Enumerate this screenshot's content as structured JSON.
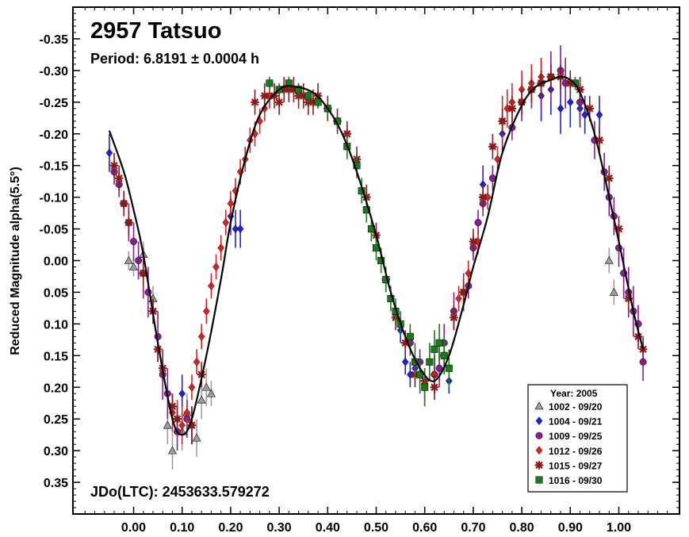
{
  "chart_data": {
    "type": "scatter",
    "title": "2957 Tatsuo",
    "subtitle": "Period: 6.8191 ± 0.0004 h",
    "epoch_label": "JDo(LTC): 2453633.579272",
    "xlabel": "",
    "ylabel": "Reduced Magnitude alpha(5.5°)",
    "xlim": [
      -0.125,
      1.125
    ],
    "ylim": [
      0.4,
      -0.4
    ],
    "y_inverted": true,
    "x_ticks": [
      0.0,
      0.1,
      0.2,
      0.3,
      0.4,
      0.5,
      0.6,
      0.7,
      0.8,
      0.9,
      1.0
    ],
    "x_tick_labels": [
      "0.00",
      "0.10",
      "0.20",
      "0.30",
      "0.40",
      "0.50",
      "0.60",
      "0.70",
      "0.80",
      "0.90",
      "1.00"
    ],
    "y_ticks": [
      -0.35,
      -0.3,
      -0.25,
      -0.2,
      -0.15,
      -0.1,
      -0.05,
      0.0,
      0.05,
      0.1,
      0.15,
      0.2,
      0.25,
      0.3,
      0.35
    ],
    "y_tick_labels": [
      "-0.35",
      "-0.30",
      "-0.25",
      "-0.20",
      "-0.15",
      "-0.10",
      "-0.05",
      "0.00",
      "0.05",
      "0.10",
      "0.15",
      "0.20",
      "0.25",
      "0.30",
      "0.35"
    ],
    "grid": false,
    "legend": {
      "title": "Year: 2005",
      "position": "bottom-right"
    },
    "fit_curve": {
      "x": [
        -0.05,
        -0.02,
        0.0,
        0.02,
        0.05,
        0.08,
        0.1,
        0.12,
        0.15,
        0.18,
        0.2,
        0.23,
        0.26,
        0.3,
        0.33,
        0.37,
        0.4,
        0.43,
        0.46,
        0.5,
        0.53,
        0.56,
        0.59,
        0.62,
        0.65,
        0.68,
        0.7,
        0.73,
        0.76,
        0.8,
        0.83,
        0.86,
        0.88,
        0.9,
        0.92,
        0.95,
        0.98,
        1.0,
        1.03,
        1.05
      ],
      "y": [
        -0.205,
        -0.14,
        -0.08,
        -0.01,
        0.13,
        0.25,
        0.275,
        0.25,
        0.15,
        0.03,
        -0.06,
        -0.16,
        -0.23,
        -0.27,
        -0.275,
        -0.265,
        -0.24,
        -0.2,
        -0.14,
        -0.04,
        0.05,
        0.12,
        0.17,
        0.19,
        0.15,
        0.07,
        0.01,
        -0.07,
        -0.17,
        -0.245,
        -0.275,
        -0.285,
        -0.29,
        -0.285,
        -0.265,
        -0.2,
        -0.1,
        -0.03,
        0.08,
        0.14
      ]
    },
    "series": [
      {
        "name": "1002 - 09/20",
        "marker": "triangle",
        "color": "#9e9e9e",
        "x": [
          -0.01,
          0.0,
          0.02,
          0.04,
          0.07,
          0.08,
          0.1,
          0.11,
          0.13,
          0.14,
          0.15,
          0.16,
          0.98,
          0.99
        ],
        "y": [
          0.0,
          0.01,
          -0.01,
          0.06,
          0.26,
          0.3,
          0.27,
          0.24,
          0.28,
          0.22,
          0.2,
          0.21,
          0.0,
          0.05
        ],
        "err": [
          0.015,
          0.015,
          0.02,
          0.02,
          0.03,
          0.03,
          0.03,
          0.03,
          0.03,
          0.03,
          0.03,
          0.02,
          0.02,
          0.02
        ]
      },
      {
        "name": "1004 - 09/21",
        "marker": "diamond",
        "color": "#1f1fe0",
        "x": [
          -0.05,
          0.1,
          0.12,
          0.2,
          0.21,
          0.22,
          0.55,
          0.56,
          0.57,
          0.58,
          0.6,
          0.62,
          0.65,
          0.72,
          0.76,
          0.84,
          0.86,
          0.88,
          0.9,
          0.92,
          0.93,
          0.96
        ],
        "y": [
          -0.17,
          0.21,
          0.26,
          -0.07,
          -0.05,
          -0.05,
          0.11,
          0.16,
          0.18,
          0.17,
          0.2,
          0.18,
          0.19,
          -0.12,
          -0.2,
          -0.26,
          -0.27,
          -0.24,
          -0.25,
          -0.24,
          -0.23,
          -0.23
        ],
        "err": [
          0.03,
          0.03,
          0.03,
          0.03,
          0.03,
          0.03,
          0.02,
          0.02,
          0.02,
          0.02,
          0.03,
          0.03,
          0.02,
          0.03,
          0.03,
          0.04,
          0.04,
          0.04,
          0.04,
          0.03,
          0.03,
          0.03
        ]
      },
      {
        "name": "1009 - 09/25",
        "marker": "circle",
        "color": "#8a1a96",
        "x": [
          -0.04,
          -0.03,
          -0.02,
          -0.01,
          0.0,
          0.01,
          0.02,
          0.03,
          0.05,
          0.06,
          0.07,
          0.09,
          0.11,
          0.57,
          0.59,
          0.62,
          0.63,
          0.64,
          0.66,
          0.68,
          0.69,
          0.7,
          0.71,
          0.72,
          0.74,
          0.78,
          0.8,
          0.82,
          0.84,
          0.86,
          0.88,
          0.89,
          0.92,
          0.95,
          0.97,
          0.98,
          0.99,
          1.0,
          1.01,
          1.02,
          1.03,
          1.04,
          1.05
        ],
        "y": [
          -0.14,
          -0.12,
          -0.09,
          -0.06,
          -0.03,
          0.0,
          0.02,
          0.05,
          0.12,
          0.18,
          0.21,
          0.27,
          0.25,
          0.13,
          0.16,
          0.18,
          0.17,
          0.13,
          0.08,
          0.05,
          0.04,
          -0.02,
          -0.06,
          -0.09,
          -0.13,
          -0.21,
          -0.25,
          -0.27,
          -0.28,
          -0.29,
          -0.3,
          -0.28,
          -0.25,
          -0.19,
          -0.14,
          -0.1,
          -0.07,
          -0.02,
          0.02,
          0.05,
          0.08,
          0.1,
          0.16
        ],
        "err": [
          0.02,
          0.02,
          0.02,
          0.03,
          0.03,
          0.03,
          0.04,
          0.04,
          0.04,
          0.04,
          0.04,
          0.03,
          0.03,
          0.02,
          0.02,
          0.03,
          0.03,
          0.03,
          0.03,
          0.03,
          0.02,
          0.02,
          0.02,
          0.02,
          0.02,
          0.02,
          0.03,
          0.03,
          0.04,
          0.04,
          0.04,
          0.04,
          0.03,
          0.03,
          0.03,
          0.03,
          0.03,
          0.03,
          0.04,
          0.04,
          0.04,
          0.03,
          0.03
        ]
      },
      {
        "name": "1012 - 09/26",
        "marker": "diamond",
        "color": "#e02020",
        "x": [
          0.08,
          0.09,
          0.1,
          0.11,
          0.12,
          0.13,
          0.14,
          0.15,
          0.16,
          0.17,
          0.18,
          0.19,
          0.2,
          0.21,
          0.22,
          0.23,
          0.24,
          0.25,
          0.26,
          0.27,
          0.28,
          0.6,
          0.62,
          0.67,
          0.69,
          0.71,
          0.73,
          0.75,
          0.76,
          0.77,
          0.78,
          0.8,
          0.82,
          0.84
        ],
        "y": [
          0.24,
          0.25,
          0.26,
          0.24,
          0.2,
          0.16,
          0.12,
          0.08,
          0.04,
          0.01,
          -0.02,
          -0.06,
          -0.09,
          -0.11,
          -0.14,
          -0.16,
          -0.19,
          -0.2,
          -0.22,
          -0.24,
          -0.26,
          0.2,
          0.18,
          0.06,
          0.02,
          -0.03,
          -0.1,
          -0.16,
          -0.22,
          -0.24,
          -0.25,
          -0.27,
          -0.28,
          -0.29
        ],
        "err": [
          0.03,
          0.03,
          0.03,
          0.02,
          0.02,
          0.02,
          0.02,
          0.02,
          0.02,
          0.02,
          0.02,
          0.02,
          0.02,
          0.02,
          0.02,
          0.02,
          0.02,
          0.02,
          0.02,
          0.02,
          0.02,
          0.02,
          0.02,
          0.02,
          0.02,
          0.02,
          0.02,
          0.02,
          0.04,
          0.03,
          0.03,
          0.03,
          0.03,
          0.03
        ]
      },
      {
        "name": "1015 - 09/27",
        "marker": "asterisk",
        "color": "#8b1a1a",
        "x": [
          -0.04,
          -0.03,
          -0.02,
          -0.01,
          0.02,
          0.04,
          0.05,
          0.06,
          0.08,
          0.09,
          0.12,
          0.14,
          0.25,
          0.27,
          0.29,
          0.3,
          0.31,
          0.32,
          0.33,
          0.34,
          0.35,
          0.36,
          0.37,
          0.38,
          0.4,
          0.42,
          0.44,
          0.46,
          0.48,
          0.5,
          0.52,
          0.54,
          0.56,
          0.58,
          0.6,
          0.62,
          0.64,
          0.66,
          0.68,
          0.7,
          0.72,
          0.74,
          0.76,
          0.78,
          0.8,
          0.82,
          0.84,
          0.86,
          0.88,
          0.9,
          0.92,
          0.94,
          0.96,
          0.98,
          1.0,
          1.02,
          1.04,
          1.05
        ],
        "y": [
          -0.15,
          -0.13,
          -0.09,
          -0.06,
          0.02,
          0.08,
          0.14,
          0.17,
          0.23,
          0.25,
          0.26,
          0.18,
          -0.25,
          -0.26,
          -0.26,
          -0.25,
          -0.27,
          -0.27,
          -0.27,
          -0.26,
          -0.26,
          -0.25,
          -0.25,
          -0.26,
          -0.24,
          -0.22,
          -0.2,
          -0.16,
          -0.1,
          -0.04,
          0.03,
          0.09,
          0.13,
          0.18,
          0.19,
          0.2,
          0.15,
          0.09,
          0.05,
          -0.03,
          -0.1,
          -0.18,
          -0.22,
          -0.24,
          -0.25,
          -0.27,
          -0.28,
          -0.29,
          -0.29,
          -0.28,
          -0.27,
          -0.24,
          -0.19,
          -0.13,
          -0.05,
          0.06,
          0.12,
          0.14
        ],
        "err": [
          0.02,
          0.02,
          0.02,
          0.02,
          0.02,
          0.02,
          0.02,
          0.02,
          0.02,
          0.02,
          0.03,
          0.02,
          0.02,
          0.02,
          0.02,
          0.02,
          0.02,
          0.02,
          0.02,
          0.02,
          0.02,
          0.02,
          0.02,
          0.02,
          0.02,
          0.02,
          0.02,
          0.02,
          0.02,
          0.02,
          0.02,
          0.02,
          0.02,
          0.02,
          0.02,
          0.02,
          0.02,
          0.02,
          0.02,
          0.02,
          0.02,
          0.02,
          0.02,
          0.02,
          0.02,
          0.02,
          0.02,
          0.02,
          0.02,
          0.02,
          0.02,
          0.02,
          0.02,
          0.02,
          0.02,
          0.02,
          0.02,
          0.02
        ]
      },
      {
        "name": "1016 - 09/30",
        "marker": "square",
        "color": "#1a7a1a",
        "x": [
          0.28,
          0.3,
          0.32,
          0.34,
          0.36,
          0.38,
          0.4,
          0.42,
          0.44,
          0.46,
          0.47,
          0.48,
          0.49,
          0.5,
          0.51,
          0.52,
          0.53,
          0.54,
          0.55,
          0.57,
          0.58,
          0.59,
          0.6,
          0.61,
          0.62,
          0.63,
          0.64,
          0.65,
          0.91
        ],
        "y": [
          -0.28,
          -0.27,
          -0.28,
          -0.27,
          -0.26,
          -0.25,
          -0.24,
          -0.22,
          -0.18,
          -0.15,
          -0.11,
          -0.08,
          -0.05,
          -0.02,
          0.0,
          0.03,
          0.06,
          0.08,
          0.1,
          0.12,
          0.16,
          0.18,
          0.2,
          0.16,
          0.14,
          0.13,
          0.15,
          0.17,
          -0.28
        ],
        "err": [
          0.01,
          0.01,
          0.01,
          0.01,
          0.01,
          0.01,
          0.01,
          0.01,
          0.02,
          0.02,
          0.02,
          0.02,
          0.02,
          0.02,
          0.02,
          0.02,
          0.02,
          0.02,
          0.02,
          0.02,
          0.03,
          0.03,
          0.03,
          0.03,
          0.03,
          0.03,
          0.03,
          0.03,
          0.01
        ]
      }
    ]
  }
}
